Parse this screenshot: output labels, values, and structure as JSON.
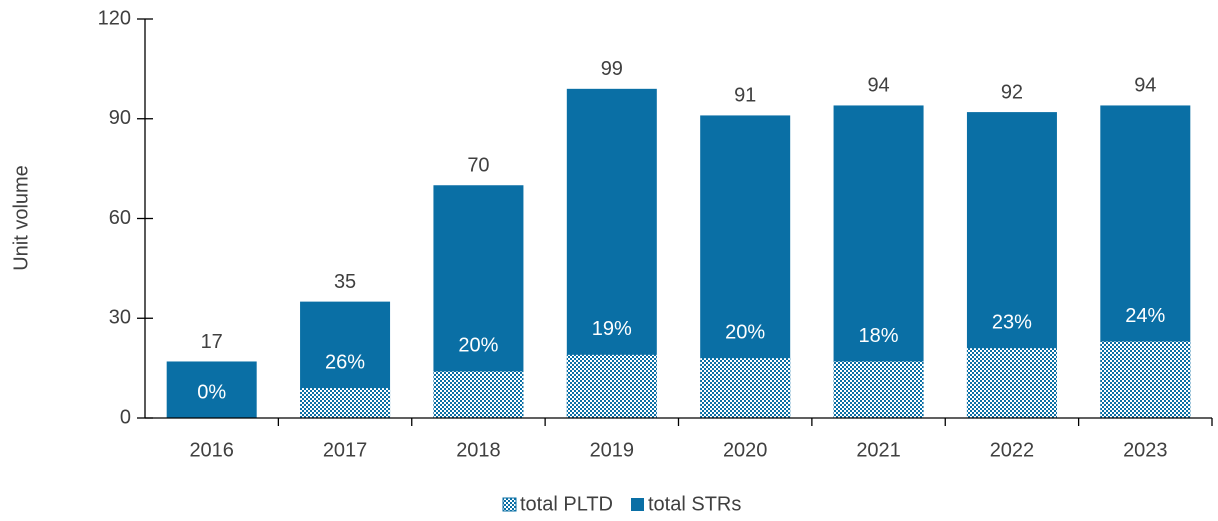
{
  "chart_data": {
    "type": "bar",
    "y_label": "Unit volume",
    "categories": [
      "2016",
      "2017",
      "2018",
      "2019",
      "2020",
      "2021",
      "2022",
      "2023"
    ],
    "series": [
      {
        "name": "total PLTD",
        "color": "#0a6fa5",
        "pattern": "checker",
        "values": [
          0,
          9,
          14,
          19,
          18,
          17,
          21,
          23
        ]
      },
      {
        "name": "total STRs",
        "color": "#0a6fa5",
        "values": [
          17,
          35,
          70,
          99,
          91,
          94,
          92,
          94
        ]
      }
    ],
    "share": {
      "values": [
        0,
        26,
        20,
        19,
        20,
        18,
        23,
        24
      ],
      "value_labels": [
        "0%",
        "26%",
        "20%",
        "19%",
        "20%",
        "18%",
        "23%",
        "24%"
      ]
    },
    "ylim": [
      0,
      120
    ],
    "yticks": [
      0,
      30,
      60,
      90,
      120
    ],
    "legend": "bottom"
  }
}
